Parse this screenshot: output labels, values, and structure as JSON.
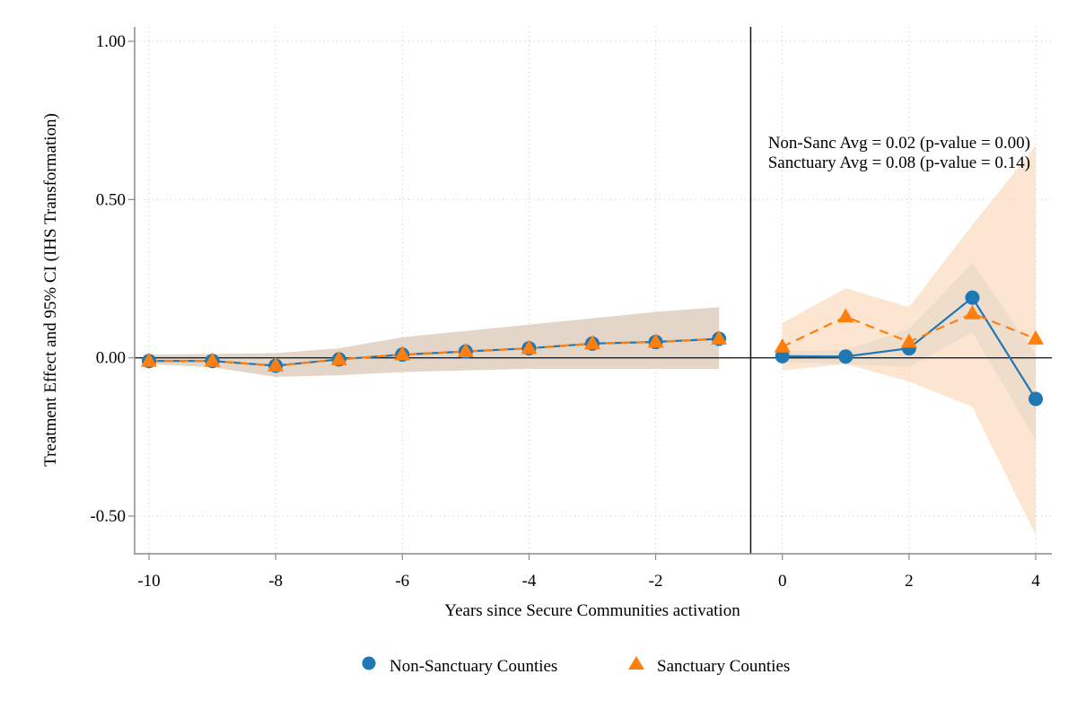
{
  "chart_data": {
    "type": "line",
    "title": "",
    "xlabel": "Years since Secure Communities activation",
    "ylabel": "Treatment Effect and 95% CI (IHS Transformation)",
    "xlim": [
      -10.25,
      4.25
    ],
    "ylim": [
      -0.62,
      1.06
    ],
    "x_ticks": [
      -10,
      -8,
      -6,
      -4,
      -2,
      0,
      2,
      4
    ],
    "x_tick_labels": [
      "-10",
      "-8",
      "-6",
      "-4",
      "-2",
      "0",
      "2",
      "4"
    ],
    "y_ticks": [
      1.0,
      0.5,
      0.0,
      -0.5
    ],
    "y_tick_labels": [
      "1.00",
      "0.50",
      "0.00",
      "-0.50"
    ],
    "grid": true,
    "reference_lines": {
      "horizontal_y": 0,
      "vertical_x": -0.5
    },
    "annotations": [
      "Non-Sanc Avg = 0.02 (p-value = 0.00)",
      "Sanctuary Avg = 0.08 (p-value = 0.14)"
    ],
    "legend": {
      "position": "bottom",
      "entries": [
        "Non-Sanctuary Counties",
        "Sanctuary Counties"
      ]
    },
    "series": [
      {
        "name": "Non-Sanctuary Counties",
        "marker": "circle",
        "line_style": "solid",
        "color": "#1f77b4",
        "band_color": "#c9dff0",
        "segments": [
          {
            "x": [
              -10,
              -9,
              -8,
              -7,
              -6,
              -5,
              -4,
              -3,
              -2,
              -1
            ],
            "y": [
              -0.01,
              -0.01,
              -0.025,
              -0.005,
              0.01,
              0.02,
              0.03,
              0.045,
              0.05,
              0.06
            ],
            "ci_low": [
              -0.02,
              -0.03,
              -0.06,
              -0.055,
              -0.045,
              -0.04,
              -0.035,
              -0.035,
              -0.035,
              -0.035
            ],
            "ci_high": [
              0.01,
              0.012,
              0.015,
              0.03,
              0.065,
              0.085,
              0.105,
              0.125,
              0.145,
              0.16
            ]
          },
          {
            "x": [
              0,
              1,
              2,
              3,
              4
            ],
            "y": [
              0.005,
              0.004,
              0.03,
              0.19,
              -0.13
            ],
            "ci_low": [
              -0.015,
              -0.02,
              -0.03,
              0.08,
              -0.26
            ],
            "ci_high": [
              0.02,
              0.025,
              0.09,
              0.3,
              0.01
            ]
          }
        ]
      },
      {
        "name": "Sanctuary Counties",
        "marker": "triangle",
        "line_style": "dashed",
        "color": "#ff7f0e",
        "band_color": "#fde3cc",
        "segments": [
          {
            "x": [
              -10,
              -9,
              -8,
              -7,
              -6,
              -5,
              -4,
              -3,
              -2,
              -1
            ],
            "y": [
              -0.01,
              -0.01,
              -0.025,
              -0.005,
              0.01,
              0.02,
              0.03,
              0.045,
              0.05,
              0.06
            ],
            "ci_low": [
              -0.02,
              -0.03,
              -0.06,
              -0.055,
              -0.045,
              -0.04,
              -0.035,
              -0.035,
              -0.035,
              -0.035
            ],
            "ci_high": [
              0.01,
              0.012,
              0.015,
              0.03,
              0.065,
              0.085,
              0.105,
              0.125,
              0.145,
              0.16
            ]
          },
          {
            "x": [
              0,
              1,
              2,
              3,
              4
            ],
            "y": [
              0.035,
              0.13,
              0.05,
              0.14,
              0.06
            ],
            "ci_low": [
              -0.04,
              -0.02,
              -0.075,
              -0.155,
              -0.56
            ],
            "ci_high": [
              0.11,
              0.22,
              0.16,
              0.42,
              0.67
            ]
          }
        ]
      }
    ]
  }
}
